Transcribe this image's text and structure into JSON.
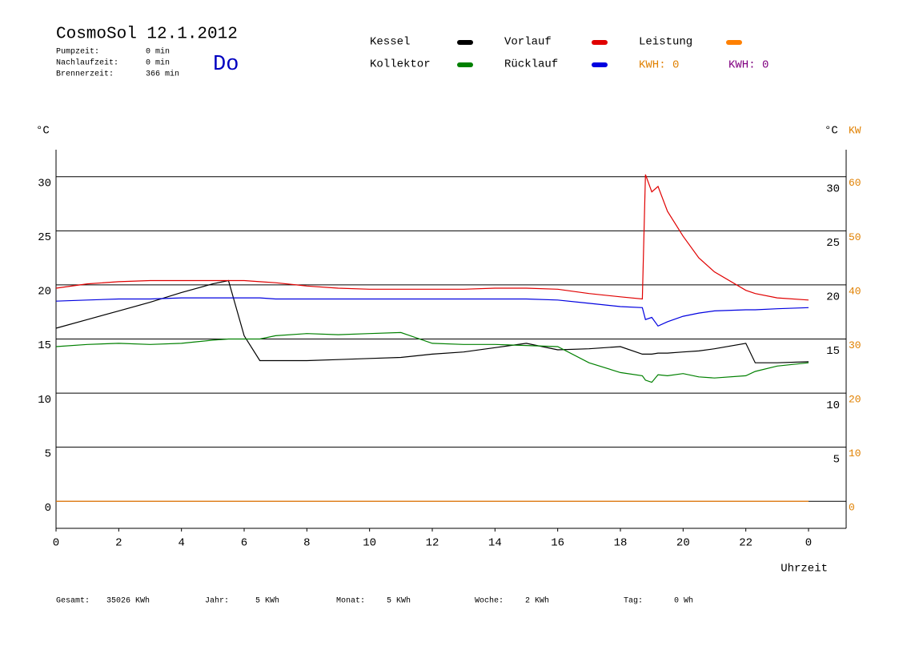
{
  "chart_data": {
    "type": "line",
    "title": "CosmoSol 12.1.2012",
    "info": [
      {
        "label": "Pumpzeit:",
        "value": "0 min"
      },
      {
        "label": "Nachlaufzeit:",
        "value": "0 min"
      },
      {
        "label": "Brennerzeit:",
        "value": "366 min"
      }
    ],
    "day": "Do",
    "kwh": [
      "KWH: 0",
      "KWH: 0"
    ],
    "y_unit": "°C",
    "y_unit_right": "°C",
    "y2_unit": "KW",
    "x_label": "Uhrzeit",
    "x": [
      0,
      1,
      2,
      3,
      4,
      5,
      5.5,
      6,
      6.5,
      7,
      8,
      9,
      10,
      11,
      12,
      13,
      14,
      15,
      16,
      17,
      18,
      18.7,
      18.8,
      19,
      19.2,
      19.5,
      20,
      20.5,
      21,
      22,
      22.3,
      23,
      24
    ],
    "series": [
      {
        "name": "Kessel",
        "color": "#000000",
        "values": [
          16.0,
          16.8,
          17.6,
          18.4,
          19.3,
          20.1,
          20.4,
          15.3,
          13.0,
          13.0,
          13.0,
          13.1,
          13.2,
          13.3,
          13.6,
          13.8,
          14.2,
          14.6,
          14.0,
          14.1,
          14.3,
          13.6,
          13.6,
          13.6,
          13.7,
          13.7,
          13.8,
          13.9,
          14.1,
          14.6,
          12.8,
          12.8,
          12.9
        ]
      },
      {
        "name": "Vorlauf",
        "color": "#e00000",
        "values": [
          19.7,
          20.1,
          20.3,
          20.4,
          20.4,
          20.4,
          20.4,
          20.4,
          20.3,
          20.2,
          19.9,
          19.7,
          19.6,
          19.6,
          19.6,
          19.6,
          19.7,
          19.7,
          19.6,
          19.2,
          18.9,
          18.7,
          30.2,
          28.6,
          29.1,
          26.8,
          24.5,
          22.5,
          21.2,
          19.5,
          19.2,
          18.8,
          18.6
        ]
      },
      {
        "name": "Leistung",
        "color": "#ff8000",
        "axis": "y2",
        "values": [
          0,
          0,
          0,
          0,
          0,
          0,
          0,
          0,
          0,
          0,
          0,
          0,
          0,
          0,
          0,
          0,
          0,
          0,
          0,
          0,
          0,
          0,
          0,
          0,
          0,
          0,
          0,
          0,
          0,
          0,
          0,
          0,
          0
        ]
      },
      {
        "name": "Kollektor",
        "color": "#008000",
        "values": [
          14.3,
          14.5,
          14.6,
          14.5,
          14.6,
          14.9,
          15.0,
          15.0,
          15.0,
          15.3,
          15.5,
          15.4,
          15.5,
          15.6,
          14.6,
          14.5,
          14.5,
          14.4,
          14.3,
          12.8,
          11.9,
          11.6,
          11.2,
          11.0,
          11.7,
          11.6,
          11.8,
          11.5,
          11.4,
          11.6,
          12.0,
          12.5,
          12.8
        ]
      },
      {
        "name": "Rücklauf",
        "color": "#0000e0",
        "values": [
          18.5,
          18.6,
          18.7,
          18.7,
          18.8,
          18.8,
          18.8,
          18.8,
          18.8,
          18.7,
          18.7,
          18.7,
          18.7,
          18.7,
          18.7,
          18.7,
          18.7,
          18.7,
          18.6,
          18.3,
          18.0,
          17.9,
          16.8,
          17.0,
          16.2,
          16.6,
          17.1,
          17.4,
          17.6,
          17.7,
          17.7,
          17.8,
          17.9
        ]
      }
    ],
    "xlim": [
      0,
      25.2
    ],
    "xticks": [
      0,
      2,
      4,
      6,
      8,
      10,
      12,
      14,
      16,
      18,
      20,
      22,
      {
        "value": 24,
        "label": "0"
      }
    ],
    "ylim": [
      -2.5,
      32.5
    ],
    "yticks": [
      0,
      5,
      10,
      15,
      20,
      25,
      30
    ],
    "yticks_right": [
      5,
      10,
      15,
      20,
      25,
      30
    ],
    "y2lim": [
      -5,
      65
    ],
    "y2ticks": [
      0,
      10,
      20,
      30,
      40,
      50,
      60
    ],
    "grid": true,
    "footer": [
      {
        "label": "Gesamt:",
        "value": "35026 KWh"
      },
      {
        "label": "Jahr:",
        "value": "5 KWh"
      },
      {
        "label": "Monat:",
        "value": "5 KWh"
      },
      {
        "label": "Woche:",
        "value": "2 KWh"
      },
      {
        "label": "Tag:",
        "value": "0 Wh"
      }
    ]
  }
}
